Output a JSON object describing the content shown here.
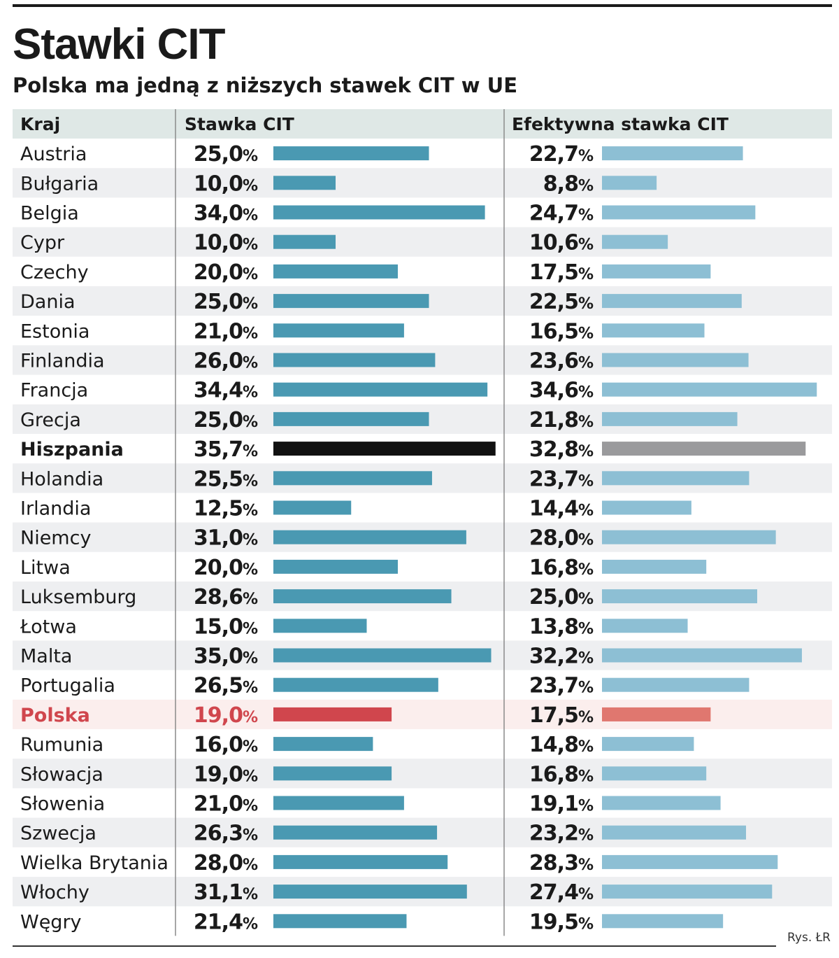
{
  "title": "Stawki CIT",
  "subtitle": "Polska ma jedną z niższych stawek CIT w UE",
  "credit": "Rys. ŁR",
  "colors": {
    "header_bg": "#dfe8e6",
    "row_alt_bg": "#eeeff1",
    "highlight_row_bg": "#fbeeed",
    "bar_stawka": "#4a99b2",
    "bar_efektywna": "#8dbfd4",
    "bar_hiszpania_stawka": "#111111",
    "bar_hiszpania_efektywna": "#9a9a9c",
    "bar_polska_stawka": "#d0464d",
    "bar_polska_efektywna": "#e0776f",
    "polska_text": "#d0464d"
  },
  "chart_data": {
    "type": "bar",
    "columns": [
      "Kraj",
      "Stawka CIT",
      "Efektywna stawka CIT"
    ],
    "unit": "%",
    "categories": [
      "Austria",
      "Bułgaria",
      "Belgia",
      "Cypr",
      "Czechy",
      "Dania",
      "Estonia",
      "Finlandia",
      "Francja",
      "Grecja",
      "Hiszpania",
      "Holandia",
      "Irlandia",
      "Niemcy",
      "Litwa",
      "Luksemburg",
      "Łotwa",
      "Malta",
      "Portugalia",
      "Polska",
      "Rumunia",
      "Słowacja",
      "Słowenia",
      "Szwecja",
      "Wielka Brytania",
      "Włochy",
      "Węgry"
    ],
    "series": [
      {
        "name": "Stawka CIT",
        "values": [
          25.0,
          10.0,
          34.0,
          10.0,
          20.0,
          25.0,
          21.0,
          26.0,
          34.4,
          25.0,
          35.7,
          25.5,
          12.5,
          31.0,
          20.0,
          28.6,
          15.0,
          35.0,
          26.5,
          19.0,
          16.0,
          19.0,
          21.0,
          26.3,
          28.0,
          31.1,
          21.4
        ],
        "labels": [
          "25,0",
          "10,0",
          "34,0",
          "10,0",
          "20,0",
          "25,0",
          "21,0",
          "26,0",
          "34,4",
          "25,0",
          "35,7",
          "25,5",
          "12,5",
          "31,0",
          "20,0",
          "28,6",
          "15,0",
          "35,0",
          "26,5",
          "19,0",
          "16,0",
          "19,0",
          "21,0",
          "26,3",
          "28,0",
          "31,1",
          "21,4"
        ]
      },
      {
        "name": "Efektywna stawka CIT",
        "values": [
          22.7,
          8.8,
          24.7,
          10.6,
          17.5,
          22.5,
          16.5,
          23.6,
          34.6,
          21.8,
          32.8,
          23.7,
          14.4,
          28.0,
          16.8,
          25.0,
          13.8,
          32.2,
          23.7,
          17.5,
          14.8,
          16.8,
          19.1,
          23.2,
          28.3,
          27.4,
          19.5
        ],
        "labels": [
          "22,7",
          "8,8",
          "24,7",
          "10,6",
          "17,5",
          "22,5",
          "16,5",
          "23,6",
          "34,6",
          "21,8",
          "32,8",
          "23,7",
          "14,4",
          "28,0",
          "16,8",
          "25,0",
          "13,8",
          "32,2",
          "23,7",
          "17,5",
          "14,8",
          "16,8",
          "19,1",
          "23,2",
          "28,3",
          "27,4",
          "19,5"
        ]
      }
    ],
    "highlighted": {
      "Hiszpania": "max",
      "Polska": "focus"
    }
  }
}
